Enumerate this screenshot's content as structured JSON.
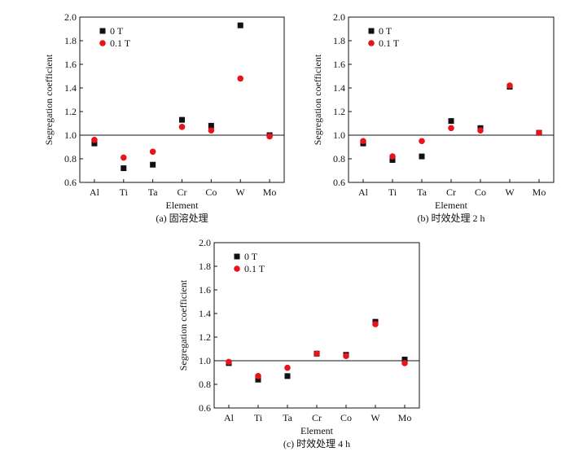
{
  "chart_data": [
    {
      "type": "scatter",
      "caption": "(a) 固溶处理",
      "xlabel": "Element",
      "ylabel": "Segregation coefficient",
      "categories": [
        "Al",
        "Ti",
        "Ta",
        "Cr",
        "Co",
        "W",
        "Mo"
      ],
      "ylim": [
        0.6,
        2.0
      ],
      "yticks": [
        "0.6",
        "0.8",
        "1.0",
        "1.2",
        "1.4",
        "1.6",
        "1.8",
        "2.0"
      ],
      "reference_line": 1.0,
      "legend_position": "top-left",
      "series": [
        {
          "name": "0 T",
          "marker": "square",
          "color": "#111111",
          "values": [
            0.93,
            0.72,
            0.75,
            1.13,
            1.08,
            1.93,
            1.0
          ]
        },
        {
          "name": "0.1 T",
          "marker": "circle",
          "color": "#e8141b",
          "values": [
            0.96,
            0.81,
            0.86,
            1.07,
            1.04,
            1.48,
            0.99
          ]
        }
      ]
    },
    {
      "type": "scatter",
      "caption": "(b) 时效处理 2 h",
      "xlabel": "Element",
      "ylabel": "Segregation coefficient",
      "categories": [
        "Al",
        "Ti",
        "Ta",
        "Cr",
        "Co",
        "W",
        "Mo"
      ],
      "ylim": [
        0.6,
        2.0
      ],
      "yticks": [
        "0.6",
        "0.8",
        "1.0",
        "1.2",
        "1.4",
        "1.6",
        "1.8",
        "2.0"
      ],
      "reference_line": 1.0,
      "legend_position": "top-left",
      "series": [
        {
          "name": "0 T",
          "marker": "square",
          "color": "#111111",
          "values": [
            0.93,
            0.79,
            0.82,
            1.12,
            1.06,
            1.41,
            1.02
          ]
        },
        {
          "name": "0.1 T",
          "marker": "circle",
          "color": "#e8141b",
          "values": [
            0.95,
            0.82,
            0.95,
            1.06,
            1.04,
            1.42,
            1.02
          ]
        }
      ]
    },
    {
      "type": "scatter",
      "caption": "(c) 时效处理 4 h",
      "xlabel": "Element",
      "ylabel": "Segregation coefficient",
      "categories": [
        "Al",
        "Ti",
        "Ta",
        "Cr",
        "Co",
        "W",
        "Mo"
      ],
      "ylim": [
        0.6,
        2.0
      ],
      "yticks": [
        "0.6",
        "0.8",
        "1.0",
        "1.2",
        "1.4",
        "1.6",
        "1.8",
        "2.0"
      ],
      "reference_line": 1.0,
      "legend_position": "top-left",
      "series": [
        {
          "name": "0 T",
          "marker": "square",
          "color": "#111111",
          "values": [
            0.98,
            0.84,
            0.87,
            1.06,
            1.05,
            1.33,
            1.01
          ]
        },
        {
          "name": "0.1 T",
          "marker": "circle",
          "color": "#e8141b",
          "values": [
            0.99,
            0.87,
            0.94,
            1.06,
            1.04,
            1.31,
            0.98
          ]
        }
      ]
    }
  ]
}
